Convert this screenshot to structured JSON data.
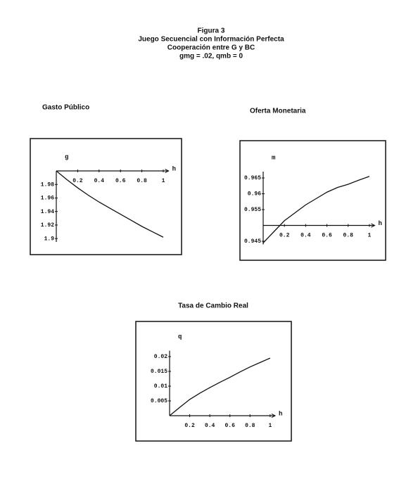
{
  "header": [
    "Figura 3",
    "Juego Secuencial con Información Perfecta",
    "Cooperación entre G y BC",
    "gmg = .02, qmb = 0"
  ],
  "chart_data": [
    {
      "type": "line",
      "title": "Gasto Público",
      "xlabel": "h",
      "ylabel": "g",
      "x": [
        0,
        0.1,
        0.2,
        0.3,
        0.4,
        0.5,
        0.6,
        0.7,
        0.8,
        0.9,
        1
      ],
      "values": [
        2.0,
        1.987,
        1.975,
        1.964,
        1.954,
        1.945,
        1.936,
        1.927,
        1.918,
        1.91,
        1.902
      ],
      "xlim": [
        0,
        1.05
      ],
      "ylim": [
        1.895,
        2.0
      ],
      "x_axis_crossing": 2.0,
      "xticks": [
        0.2,
        0.4,
        0.6,
        0.8,
        1
      ],
      "yticks": [
        1.98,
        1.96,
        1.94,
        1.92,
        1.9
      ],
      "color": "#111111"
    },
    {
      "type": "line",
      "title": "Oferta Monetaria",
      "xlabel": "h",
      "ylabel": "m",
      "x": [
        0,
        0.1,
        0.2,
        0.3,
        0.4,
        0.5,
        0.6,
        0.7,
        0.8,
        0.9,
        1
      ],
      "values": [
        0.9445,
        0.948,
        0.9515,
        0.954,
        0.9565,
        0.9585,
        0.9605,
        0.962,
        0.963,
        0.9643,
        0.9655
      ],
      "xlim": [
        0,
        1.05
      ],
      "ylim": [
        0.944,
        0.967
      ],
      "x_axis_crossing": 0.95,
      "xticks": [
        0.2,
        0.4,
        0.6,
        0.8,
        1
      ],
      "yticks": [
        0.965,
        0.96,
        0.955,
        0.945
      ],
      "color": "#111111"
    },
    {
      "type": "line",
      "title": "Tasa de Cambio Real",
      "xlabel": "h",
      "ylabel": "q",
      "x": [
        0,
        0.1,
        0.2,
        0.3,
        0.4,
        0.5,
        0.6,
        0.7,
        0.8,
        0.9,
        1
      ],
      "values": [
        0,
        0.0028,
        0.0055,
        0.0076,
        0.0095,
        0.0113,
        0.013,
        0.0148,
        0.0165,
        0.018,
        0.0195
      ],
      "xlim": [
        0,
        1.05
      ],
      "ylim": [
        0,
        0.022
      ],
      "x_axis_crossing": 0,
      "xticks": [
        0.2,
        0.4,
        0.6,
        0.8,
        1
      ],
      "yticks": [
        0.02,
        0.015,
        0.01,
        0.005
      ],
      "color": "#111111"
    }
  ]
}
